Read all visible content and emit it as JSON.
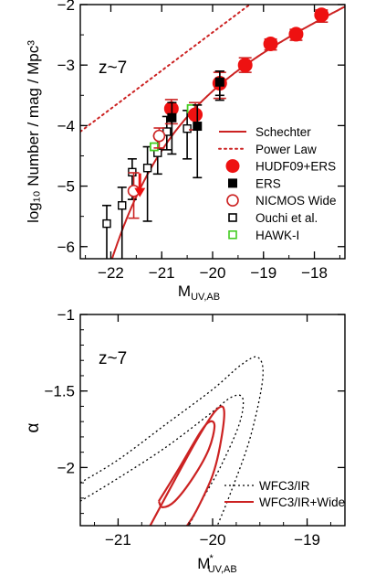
{
  "chart_data": [
    {
      "type": "scatter",
      "annotation": "z~7",
      "xlabel_main": "M",
      "xlabel_sub": "UV,AB",
      "ylabel": "log₁₀ Number / mag / Mpc³",
      "xlim": [
        -22.6,
        -17.4
      ],
      "ylim": [
        -6.2,
        -2.0
      ],
      "xticks": [
        -22,
        -21,
        -20,
        -19,
        -18
      ],
      "xtick_labels": [
        "−22",
        "−21",
        "−20",
        "−19",
        "−18"
      ],
      "yticks": [
        -6,
        -5,
        -4,
        -3,
        -2
      ],
      "ytick_labels": [
        "−6",
        "−5",
        "−4",
        "−3",
        "−2"
      ],
      "legend": [
        {
          "label": "Schechter",
          "kind": "solid-line",
          "color": "#cc2222"
        },
        {
          "label": "Power Law",
          "kind": "dotted-line",
          "color": "#cc2222"
        },
        {
          "label": "HUDF09+ERS",
          "kind": "filled-circle",
          "color": "#ee1111"
        },
        {
          "label": "ERS",
          "kind": "filled-square",
          "color": "#000000"
        },
        {
          "label": "NICMOS Wide",
          "kind": "open-circle",
          "color": "#cc2222"
        },
        {
          "label": "Ouchi et al.",
          "kind": "open-square",
          "color": "#000000"
        },
        {
          "label": "HAWK-I",
          "kind": "open-square",
          "color": "#44cc22"
        }
      ],
      "legend_position": "lower-right",
      "schechter": {
        "mstar": -20.14,
        "log_phistar": -3.07,
        "alpha": -2.01
      },
      "power_law": [
        {
          "x": -22.6,
          "y": -4.1
        },
        {
          "x": -17.4,
          "y": -0.82
        }
      ],
      "series": [
        {
          "name": "HUDF09+ERS",
          "points": [
            {
              "x": -20.81,
              "y": -3.72,
              "err_lo": 0.25,
              "err_hi": 0.15
            },
            {
              "x": -20.34,
              "y": -3.82,
              "err_lo": 0.25,
              "err_hi": 0.2
            },
            {
              "x": -19.86,
              "y": -3.3,
              "err_lo": 0.25,
              "err_hi": 0.18
            },
            {
              "x": -19.36,
              "y": -3.0,
              "err_lo": 0.12,
              "err_hi": 0.12
            },
            {
              "x": -18.86,
              "y": -2.65,
              "err_lo": 0.1,
              "err_hi": 0.08
            },
            {
              "x": -18.36,
              "y": -2.49,
              "err_lo": 0.1,
              "err_hi": 0.08
            },
            {
              "x": -17.86,
              "y": -2.17,
              "err_lo": 0.12,
              "err_hi": 0.08
            }
          ]
        },
        {
          "name": "ERS",
          "points": [
            {
              "x": -20.8,
              "y": -3.87,
              "err_lo": 0.6,
              "err_hi": 0.25
            },
            {
              "x": -20.3,
              "y": -4.01,
              "err_lo": 0.85,
              "err_hi": 0.35
            },
            {
              "x": -19.86,
              "y": -3.28,
              "err_lo": 0.3,
              "err_hi": 0.18
            }
          ]
        },
        {
          "name": "NICMOS Wide",
          "points": [
            {
              "x": -21.55,
              "y": -5.08,
              "err_lo": 0.45,
              "err_hi": 0.3
            },
            {
              "x": -21.05,
              "y": -4.17,
              "err_lo": 0.2,
              "err_hi": 0.13
            }
          ],
          "upper_limit": {
            "x": -21.43,
            "y": -4.88
          }
        },
        {
          "name": "Ouchi et al.",
          "points": [
            {
              "x": -22.08,
              "y": -5.62,
              "err_lo": 0.6,
              "err_hi": 0.3
            },
            {
              "x": -21.78,
              "y": -5.32,
              "err_lo": 0.9,
              "err_hi": 0.3
            },
            {
              "x": -21.58,
              "y": -4.77,
              "err_lo": 0.45,
              "err_hi": 0.22
            },
            {
              "x": -21.28,
              "y": -4.7,
              "err_lo": 0.88,
              "err_hi": 0.35
            },
            {
              "x": -21.08,
              "y": -4.45,
              "err_lo": 0.35,
              "err_hi": 0.28
            },
            {
              "x": -20.9,
              "y": -4.1,
              "err_lo": 0.3,
              "err_hi": 0.25
            },
            {
              "x": -20.5,
              "y": -4.05,
              "err_lo": 0.5,
              "err_hi": 0.3
            },
            {
              "x": -19.86,
              "y": -3.3,
              "err_lo": 0.2,
              "err_hi": 0.2
            }
          ]
        },
        {
          "name": "HAWK-I",
          "points": [
            {
              "x": -21.15,
              "y": -4.35
            },
            {
              "x": -20.42,
              "y": -3.72
            }
          ]
        }
      ]
    },
    {
      "type": "contour",
      "annotation": "z~7",
      "xlabel_main": "M",
      "xlabel_sup": "*",
      "xlabel_sub": "UV,AB",
      "ylabel": "α",
      "xlim": [
        -21.4,
        -18.6
      ],
      "ylim": [
        -2.38,
        -1.0
      ],
      "xticks": [
        -21,
        -20,
        -19
      ],
      "xtick_labels": [
        "−21",
        "−20",
        "−19"
      ],
      "yticks": [
        -2.0,
        -1.5,
        -1.0
      ],
      "ytick_labels": [
        "−2",
        "−1.5",
        "−1"
      ],
      "legend": [
        {
          "label": "WFC3/IR",
          "kind": "dotted-line",
          "color": "#000000"
        },
        {
          "label": "WFC3/IR+Wide",
          "kind": "solid-line",
          "color": "#cc2222"
        }
      ],
      "legend_position": "lower-right",
      "contours": [
        {
          "name": "WFC3/IR",
          "level": "outer",
          "style": "dotted",
          "color": "#000000",
          "points": [
            [
              -21.4,
              -2.1
            ],
            [
              -21.0,
              -1.95
            ],
            [
              -20.5,
              -1.72
            ],
            [
              -20.0,
              -1.49
            ],
            [
              -19.7,
              -1.33
            ],
            [
              -19.52,
              -1.28
            ],
            [
              -19.47,
              -1.42
            ],
            [
              -19.6,
              -1.8
            ],
            [
              -19.8,
              -2.15
            ],
            [
              -19.95,
              -2.38
            ]
          ]
        },
        {
          "name": "WFC3/IR",
          "level": "inner",
          "style": "dotted",
          "color": "#000000",
          "points": [
            [
              -21.4,
              -2.22
            ],
            [
              -21.0,
              -2.07
            ],
            [
              -20.5,
              -1.87
            ],
            [
              -20.05,
              -1.66
            ],
            [
              -19.8,
              -1.54
            ],
            [
              -19.68,
              -1.55
            ],
            [
              -19.72,
              -1.72
            ],
            [
              -19.92,
              -2.0
            ],
            [
              -20.1,
              -2.2
            ],
            [
              -20.25,
              -2.38
            ]
          ]
        },
        {
          "name": "WFC3/IR+Wide",
          "level": "outer",
          "style": "solid",
          "color": "#cc2222",
          "points": [
            [
              -20.66,
              -2.38
            ],
            [
              -20.4,
              -2.08
            ],
            [
              -20.15,
              -1.8
            ],
            [
              -19.97,
              -1.63
            ],
            [
              -19.88,
              -1.62
            ],
            [
              -19.91,
              -1.82
            ],
            [
              -20.0,
              -2.05
            ],
            [
              -20.17,
              -2.28
            ],
            [
              -20.27,
              -2.38
            ]
          ]
        },
        {
          "name": "WFC3/IR+Wide",
          "level": "inner",
          "style": "solid",
          "color": "#cc2222",
          "points": [
            [
              -20.57,
              -2.22
            ],
            [
              -20.35,
              -2.0
            ],
            [
              -20.13,
              -1.77
            ],
            [
              -20.03,
              -1.7
            ],
            [
              -19.98,
              -1.73
            ],
            [
              -20.04,
              -1.88
            ],
            [
              -20.2,
              -2.06
            ],
            [
              -20.4,
              -2.22
            ],
            [
              -20.53,
              -2.26
            ],
            [
              -20.57,
              -2.22
            ]
          ]
        }
      ]
    }
  ]
}
